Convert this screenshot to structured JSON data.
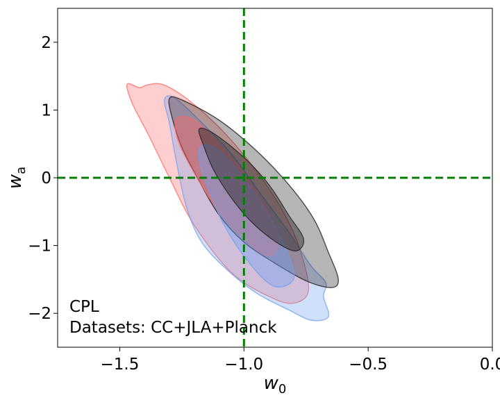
{
  "chart_data": {
    "type": "contour",
    "xlabel": "w",
    "xlabel_sub": "0",
    "ylabel": "w",
    "ylabel_sub": "a",
    "xlim": [
      -1.75,
      0.0
    ],
    "ylim": [
      -2.5,
      2.5
    ],
    "xticks": [
      -1.5,
      -1.0,
      -0.5,
      0.0
    ],
    "xtick_labels": [
      "−1.5",
      "−1.0",
      "−0.5",
      "0.0"
    ],
    "yticks": [
      -2,
      -1,
      0,
      1,
      2
    ],
    "ytick_labels": [
      "−2",
      "−1",
      "0",
      "1",
      "2"
    ],
    "reference_lines": {
      "x": -1.0,
      "y": 0.0,
      "color": "#008000",
      "style": "dashed"
    },
    "annotations": [
      "CPL",
      "Datasets: CC+JLA+Planck"
    ],
    "series": [
      {
        "color": "#ff6666",
        "outer_contour": [
          [
            -1.47,
            1.38
          ],
          [
            -1.42,
            1.33
          ],
          [
            -1.39,
            1.37
          ],
          [
            -1.33,
            1.38
          ],
          [
            -1.25,
            1.22
          ],
          [
            -1.15,
            0.92
          ],
          [
            -1.05,
            0.55
          ],
          [
            -0.95,
            0.1
          ],
          [
            -0.85,
            -0.45
          ],
          [
            -0.78,
            -1.0
          ],
          [
            -0.74,
            -1.65
          ],
          [
            -0.8,
            -1.85
          ],
          [
            -0.9,
            -1.75
          ],
          [
            -1.05,
            -1.4
          ],
          [
            -1.2,
            -0.7
          ],
          [
            -1.3,
            0.0
          ],
          [
            -1.38,
            0.6
          ],
          [
            -1.45,
            1.1
          ]
        ],
        "inner_contour": [
          [
            -1.27,
            0.88
          ],
          [
            -1.2,
            0.85
          ],
          [
            -1.1,
            0.5
          ],
          [
            -1.0,
            0.05
          ],
          [
            -0.92,
            -0.4
          ],
          [
            -0.86,
            -0.9
          ],
          [
            -0.9,
            -1.15
          ],
          [
            -1.0,
            -0.9
          ],
          [
            -1.12,
            -0.4
          ],
          [
            -1.22,
            0.2
          ],
          [
            -1.27,
            0.6
          ]
        ]
      },
      {
        "color": "#6f9ff0",
        "outer_contour": [
          [
            -1.32,
            1.15
          ],
          [
            -1.28,
            1.18
          ],
          [
            -1.18,
            0.85
          ],
          [
            -1.05,
            0.35
          ],
          [
            -0.93,
            -0.25
          ],
          [
            -0.82,
            -0.8
          ],
          [
            -0.73,
            -1.3
          ],
          [
            -0.67,
            -1.55
          ],
          [
            -0.68,
            -1.75
          ],
          [
            -0.66,
            -2.05
          ],
          [
            -0.73,
            -2.1
          ],
          [
            -0.82,
            -1.95
          ],
          [
            -0.95,
            -1.7
          ],
          [
            -1.07,
            -1.35
          ],
          [
            -1.17,
            -0.95
          ],
          [
            -1.23,
            -0.45
          ],
          [
            -1.27,
            0.2
          ],
          [
            -1.3,
            0.8
          ]
        ],
        "inner_contour": [
          [
            -1.17,
            0.48
          ],
          [
            -1.1,
            0.4
          ],
          [
            -1.0,
            0.0
          ],
          [
            -0.9,
            -0.55
          ],
          [
            -0.82,
            -1.15
          ],
          [
            -0.8,
            -1.5
          ],
          [
            -0.88,
            -1.6
          ],
          [
            -0.98,
            -1.25
          ],
          [
            -1.08,
            -0.7
          ],
          [
            -1.15,
            -0.1
          ],
          [
            -1.18,
            0.25
          ]
        ]
      },
      {
        "color": "#1a1a1a",
        "outer_contour": [
          [
            -1.3,
            1.17
          ],
          [
            -1.25,
            1.15
          ],
          [
            -1.1,
            0.85
          ],
          [
            -0.95,
            0.4
          ],
          [
            -0.82,
            -0.1
          ],
          [
            -0.72,
            -0.6
          ],
          [
            -0.66,
            -1.1
          ],
          [
            -0.62,
            -1.5
          ],
          [
            -0.65,
            -1.62
          ],
          [
            -0.75,
            -1.52
          ],
          [
            -0.88,
            -1.25
          ],
          [
            -1.0,
            -0.95
          ],
          [
            -1.1,
            -0.55
          ],
          [
            -1.18,
            -0.05
          ],
          [
            -1.25,
            0.45
          ],
          [
            -1.29,
            0.9
          ]
        ],
        "inner_contour": [
          [
            -1.18,
            0.72
          ],
          [
            -1.12,
            0.65
          ],
          [
            -1.0,
            0.3
          ],
          [
            -0.9,
            -0.1
          ],
          [
            -0.82,
            -0.55
          ],
          [
            -0.76,
            -0.9
          ],
          [
            -0.79,
            -1.08
          ],
          [
            -0.87,
            -0.95
          ],
          [
            -0.97,
            -0.65
          ],
          [
            -1.05,
            -0.3
          ],
          [
            -1.12,
            0.1
          ],
          [
            -1.16,
            0.45
          ]
        ]
      }
    ]
  }
}
